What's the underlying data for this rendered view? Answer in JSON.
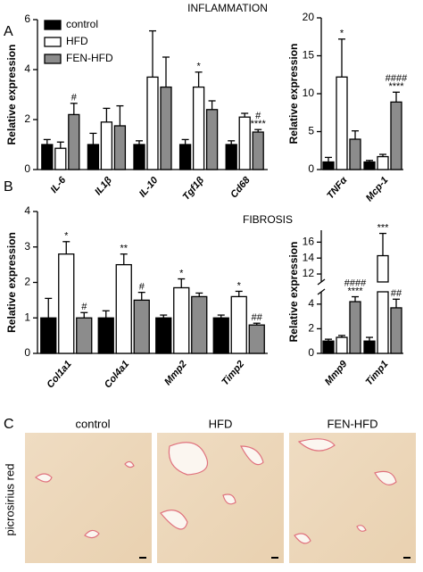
{
  "chart_data": [
    {
      "type": "bar",
      "panel_label": "A",
      "title": "INFLAMMATION",
      "ylabel": "Relative expression",
      "legend": true,
      "categories": [
        "IL-6",
        "IL1β",
        "IL-10",
        "Tgf1β",
        "Cd68"
      ],
      "ylim": [
        0,
        6
      ],
      "yticks": [
        0,
        2,
        4,
        6
      ],
      "series": [
        {
          "name": "control",
          "color": "#000000",
          "values": [
            1.0,
            1.0,
            1.0,
            1.0,
            1.0
          ],
          "errors": [
            0.2,
            0.45,
            0.15,
            0.2,
            0.15
          ],
          "annotations": [
            null,
            null,
            null,
            null,
            null
          ]
        },
        {
          "name": "HFD",
          "color": "#ffffff",
          "values": [
            0.85,
            1.9,
            3.7,
            3.3,
            2.1
          ],
          "errors": [
            0.25,
            0.55,
            1.85,
            0.6,
            0.15
          ],
          "annotations": [
            null,
            null,
            null,
            [
              "*"
            ],
            null
          ]
        },
        {
          "name": "FEN-HFD",
          "color": "#8c8c8c",
          "values": [
            2.2,
            1.75,
            3.3,
            2.4,
            1.5
          ],
          "errors": [
            0.45,
            0.8,
            1.2,
            0.35,
            0.1
          ],
          "annotations": [
            [
              "#"
            ],
            null,
            null,
            null,
            [
              "#",
              "****"
            ]
          ]
        }
      ]
    },
    {
      "type": "bar",
      "ylabel": "Relative expression",
      "legend": false,
      "categories": [
        "TNFα",
        "Mcp-1"
      ],
      "ylim": [
        0,
        20
      ],
      "yticks": [
        0,
        5,
        10,
        15,
        20
      ],
      "series": [
        {
          "color": "#000000",
          "values": [
            1.0,
            1.0
          ],
          "errors": [
            0.6,
            0.2
          ],
          "annotations": [
            null,
            null
          ]
        },
        {
          "color": "#ffffff",
          "values": [
            12.2,
            1.7
          ],
          "errors": [
            5.0,
            0.3
          ],
          "annotations": [
            [
              "*"
            ],
            null
          ]
        },
        {
          "color": "#8c8c8c",
          "values": [
            4.0,
            8.9
          ],
          "errors": [
            1.1,
            1.3
          ],
          "annotations": [
            null,
            [
              "####",
              "****"
            ]
          ]
        }
      ]
    },
    {
      "type": "bar",
      "panel_label": "B",
      "title": "FIBROSIS",
      "ylabel": "Relative expression",
      "legend": false,
      "categories": [
        "Col1a1",
        "Col4a1",
        "Mmp2",
        "Timp2"
      ],
      "ylim": [
        0,
        4
      ],
      "yticks": [
        0,
        1,
        2,
        3,
        4
      ],
      "series": [
        {
          "color": "#000000",
          "values": [
            1.0,
            1.0,
            1.0,
            1.0
          ],
          "errors": [
            0.55,
            0.2,
            0.08,
            0.08
          ],
          "annotations": [
            null,
            null,
            null,
            null
          ]
        },
        {
          "color": "#ffffff",
          "values": [
            2.8,
            2.5,
            1.85,
            1.6
          ],
          "errors": [
            0.35,
            0.3,
            0.25,
            0.15
          ],
          "annotations": [
            [
              "*"
            ],
            [
              "**"
            ],
            [
              "*"
            ],
            [
              "*"
            ]
          ]
        },
        {
          "color": "#8c8c8c",
          "values": [
            1.0,
            1.5,
            1.6,
            0.8
          ],
          "errors": [
            0.15,
            0.22,
            0.1,
            0.05
          ],
          "annotations": [
            [
              "#"
            ],
            [
              "#"
            ],
            null,
            [
              "##"
            ]
          ]
        }
      ]
    },
    {
      "type": "bar",
      "ylabel": "Relative expression",
      "legend": false,
      "categories": [
        "Mmp9",
        "Timp1"
      ],
      "ylim": [
        0,
        17.5
      ],
      "ybreak": [
        5,
        11
      ],
      "yticks": [
        0,
        2,
        4,
        12,
        14,
        16
      ],
      "series": [
        {
          "color": "#000000",
          "values": [
            1.0,
            1.0
          ],
          "errors": [
            0.15,
            0.3
          ],
          "annotations": [
            null,
            null
          ]
        },
        {
          "color": "#ffffff",
          "values": [
            1.3,
            14.3
          ],
          "errors": [
            0.15,
            2.8
          ],
          "annotations": [
            null,
            [
              "***"
            ]
          ]
        },
        {
          "color": "#8c8c8c",
          "values": [
            4.2,
            3.7
          ],
          "errors": [
            0.4,
            0.7
          ],
          "annotations": [
            [
              "####",
              "****"
            ],
            [
              "##"
            ]
          ]
        }
      ]
    }
  ],
  "panel_c": {
    "label": "C",
    "columns": [
      "control",
      "HFD",
      "FEN-HFD"
    ],
    "stain": "picrosirius red"
  }
}
